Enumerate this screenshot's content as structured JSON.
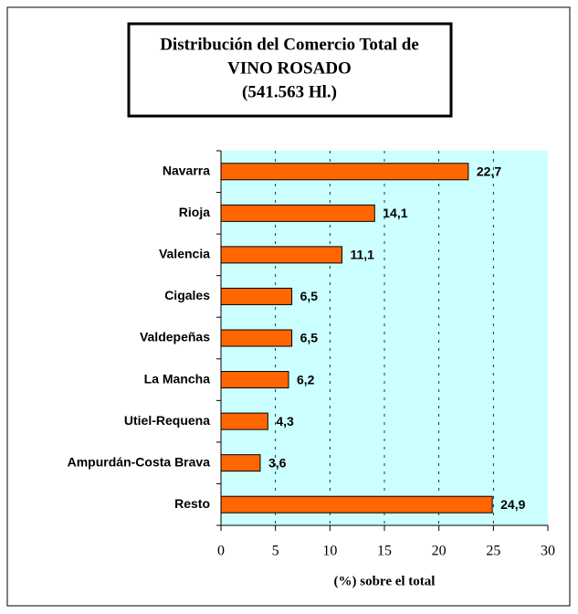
{
  "chart_data": {
    "type": "bar",
    "orientation": "horizontal",
    "title": [
      "Distribución del Comercio Total de",
      "VINO ROSADO",
      "(541.563 Hl.)"
    ],
    "xlabel": "(%) sobre el total",
    "categories": [
      "Navarra",
      "Rioja",
      "Valencia",
      "Cigales",
      "Valdepeñas",
      "La Mancha",
      "Utiel-Requena",
      "Ampurdán-Costa Brava",
      "Resto"
    ],
    "values": [
      22.7,
      14.1,
      11.1,
      6.5,
      6.5,
      6.2,
      4.3,
      3.6,
      24.9
    ],
    "value_labels": [
      "22,7",
      "14,1",
      "11,1",
      "6,5",
      "6,5",
      "6,2",
      "4,3",
      "3,6",
      "24,9"
    ],
    "color": "#ff6600",
    "background": "#ccffff",
    "xlim": [
      0,
      30
    ],
    "xticks": [
      0,
      5,
      10,
      15,
      20,
      25,
      30
    ],
    "grid": true
  }
}
